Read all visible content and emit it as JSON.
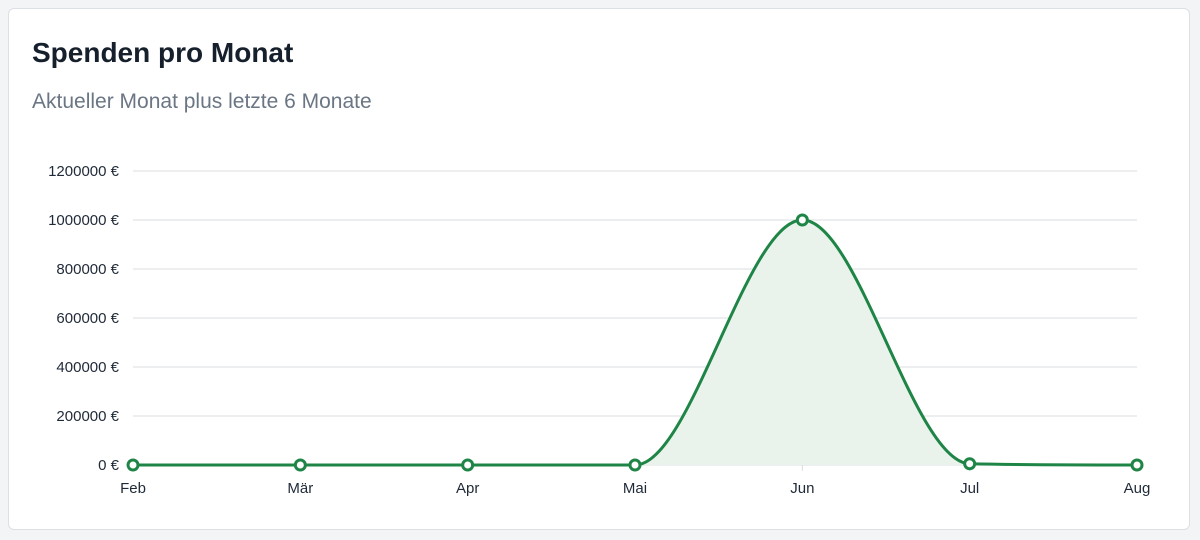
{
  "card": {
    "title": "Spenden pro Monat",
    "subtitle": "Aktueller Monat plus letzte 6 Monate"
  },
  "colors": {
    "line": "#1e8546",
    "fill": "#e9f3ec",
    "grid": "#d9dcdf",
    "point_fill": "#ffffff"
  },
  "chart_data": {
    "type": "area",
    "title": "Spenden pro Monat",
    "subtitle": "Aktueller Monat plus letzte 6 Monate",
    "categories": [
      "Feb",
      "Mär",
      "Apr",
      "Mai",
      "Jun",
      "Jul",
      "Aug"
    ],
    "series": [
      {
        "values": [
          0,
          0,
          0,
          0,
          1000000,
          5000,
          0
        ]
      }
    ],
    "yticks": [
      0,
      200000,
      400000,
      600000,
      800000,
      1000000,
      1200000
    ],
    "ytick_labels": [
      "0 €",
      "200000 €",
      "400000 €",
      "600000 €",
      "800000 €",
      "1000000 €",
      "1200000 €"
    ],
    "ylim": [
      0,
      1200000
    ],
    "xlabel": "",
    "ylabel": "",
    "grid": true,
    "legend": "none",
    "curve": "smooth"
  }
}
